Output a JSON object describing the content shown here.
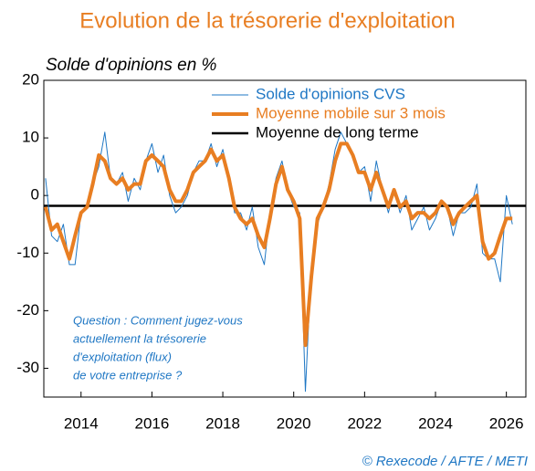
{
  "chart_data": {
    "type": "line",
    "title": "Evolution de la trésorerie d'exploitation",
    "subtitle": "Solde d'opinions en %",
    "annotation": [
      "Question : Comment jugez-vous",
      "actuellement la trésorerie",
      "d'exploitation (flux)",
      "de votre entreprise ?"
    ],
    "source": "© Rexecode / AFTE / METI",
    "x": [
      2013,
      2013.17,
      2013.33,
      2013.5,
      2013.67,
      2013.83,
      2014,
      2014.17,
      2014.33,
      2014.5,
      2014.67,
      2014.83,
      2015,
      2015.17,
      2015.33,
      2015.5,
      2015.67,
      2015.83,
      2016,
      2016.17,
      2016.33,
      2016.5,
      2016.67,
      2016.83,
      2017,
      2017.17,
      2017.33,
      2017.5,
      2017.67,
      2017.83,
      2018,
      2018.17,
      2018.33,
      2018.5,
      2018.67,
      2018.83,
      2019,
      2019.17,
      2019.33,
      2019.5,
      2019.67,
      2019.83,
      2020,
      2020.17,
      2020.33,
      2020.5,
      2020.67,
      2020.83,
      2021,
      2021.17,
      2021.33,
      2021.5,
      2021.67,
      2021.83,
      2022,
      2022.17,
      2022.33,
      2022.5,
      2022.67,
      2022.83,
      2023,
      2023.17,
      2023.33,
      2023.5,
      2023.67,
      2023.83,
      2024,
      2024.17,
      2024.33,
      2024.5,
      2024.67,
      2024.83,
      2025,
      2025.17,
      2025.33,
      2025.5,
      2025.67,
      2025.83,
      2026,
      2026.17
    ],
    "series": [
      {
        "name": "Solde d'opinions CVS",
        "color": "#1f77c4",
        "width": 1,
        "values": [
          3,
          -7,
          -8,
          -5,
          -12,
          -12,
          -3,
          -2,
          2,
          5,
          11,
          3,
          2,
          4,
          -1,
          3,
          1,
          6,
          9,
          4,
          7,
          0,
          -3,
          -2,
          0,
          4,
          6,
          6,
          9,
          5,
          8,
          3,
          -3,
          -3,
          -6,
          -2,
          -9,
          -12,
          -3,
          3,
          6,
          1,
          -2,
          -3,
          -34,
          -12,
          -5,
          -2,
          2,
          8,
          11,
          9,
          7,
          4,
          5,
          -1,
          6,
          1,
          -3,
          1,
          -3,
          0,
          -6,
          -4,
          -2,
          -6,
          -4,
          -1,
          -2,
          -7,
          -3,
          -3,
          -2,
          2,
          -10,
          -11,
          -11,
          -15,
          0,
          -5
        ]
      },
      {
        "name": "Moyenne mobile sur 3 mois",
        "color": "#e87e22",
        "width": 4,
        "values": [
          -2,
          -6,
          -5,
          -8,
          -11,
          -7,
          -3,
          -2,
          2,
          7,
          6,
          3,
          2,
          3,
          1,
          2,
          2,
          6,
          7,
          6,
          5,
          1,
          -1,
          -1,
          1,
          4,
          5,
          6,
          8,
          6,
          7,
          3,
          -2,
          -4,
          -5,
          -4,
          -7,
          -9,
          -4,
          2,
          5,
          1,
          -1,
          -4,
          -26,
          -14,
          -4,
          -2,
          1,
          6,
          9,
          9,
          7,
          4,
          4,
          1,
          4,
          1,
          -2,
          1,
          -2,
          -1,
          -4,
          -3,
          -3,
          -4,
          -3,
          -1,
          -2,
          -5,
          -3,
          -2,
          -1,
          0,
          -8,
          -11,
          -10,
          -7,
          -4,
          -4
        ]
      }
    ],
    "reference": {
      "name": "Moyenne de long terme",
      "color": "#000000",
      "value": -1.8
    },
    "xlim": [
      2012.95,
      2026.55
    ],
    "xticks": [
      2014,
      2016,
      2018,
      2020,
      2022,
      2024,
      2026
    ],
    "ylim": [
      -35,
      20
    ],
    "yticks": [
      20,
      10,
      0,
      -10,
      -20,
      -30
    ]
  }
}
